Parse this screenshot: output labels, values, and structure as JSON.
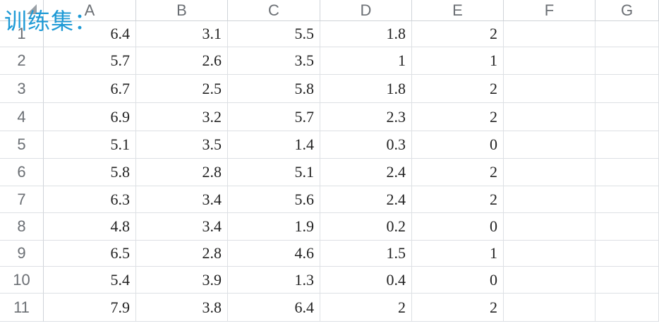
{
  "overlay_label": "训练集：",
  "columns": [
    "A",
    "B",
    "C",
    "D",
    "E",
    "F",
    "G"
  ],
  "rows": [
    {
      "row": "1",
      "cells": [
        "6.4",
        "3.1",
        "5.5",
        "1.8",
        "2",
        "",
        ""
      ]
    },
    {
      "row": "2",
      "cells": [
        "5.7",
        "2.6",
        "3.5",
        "1",
        "1",
        "",
        ""
      ]
    },
    {
      "row": "3",
      "cells": [
        "6.7",
        "2.5",
        "5.8",
        "1.8",
        "2",
        "",
        ""
      ]
    },
    {
      "row": "4",
      "cells": [
        "6.9",
        "3.2",
        "5.7",
        "2.3",
        "2",
        "",
        ""
      ]
    },
    {
      "row": "5",
      "cells": [
        "5.1",
        "3.5",
        "1.4",
        "0.3",
        "0",
        "",
        ""
      ]
    },
    {
      "row": "6",
      "cells": [
        "5.8",
        "2.8",
        "5.1",
        "2.4",
        "2",
        "",
        ""
      ]
    },
    {
      "row": "7",
      "cells": [
        "6.3",
        "3.4",
        "5.6",
        "2.4",
        "2",
        "",
        ""
      ]
    },
    {
      "row": "8",
      "cells": [
        "4.8",
        "3.4",
        "1.9",
        "0.2",
        "0",
        "",
        ""
      ]
    },
    {
      "row": "9",
      "cells": [
        "6.5",
        "2.8",
        "4.6",
        "1.5",
        "1",
        "",
        ""
      ]
    },
    {
      "row": "10",
      "cells": [
        "5.4",
        "3.9",
        "1.3",
        "0.4",
        "0",
        "",
        ""
      ]
    },
    {
      "row": "11",
      "cells": [
        "7.9",
        "3.8",
        "6.4",
        "2",
        "2",
        "",
        ""
      ]
    }
  ],
  "icons": {
    "corner": "select-all-triangle-icon"
  }
}
